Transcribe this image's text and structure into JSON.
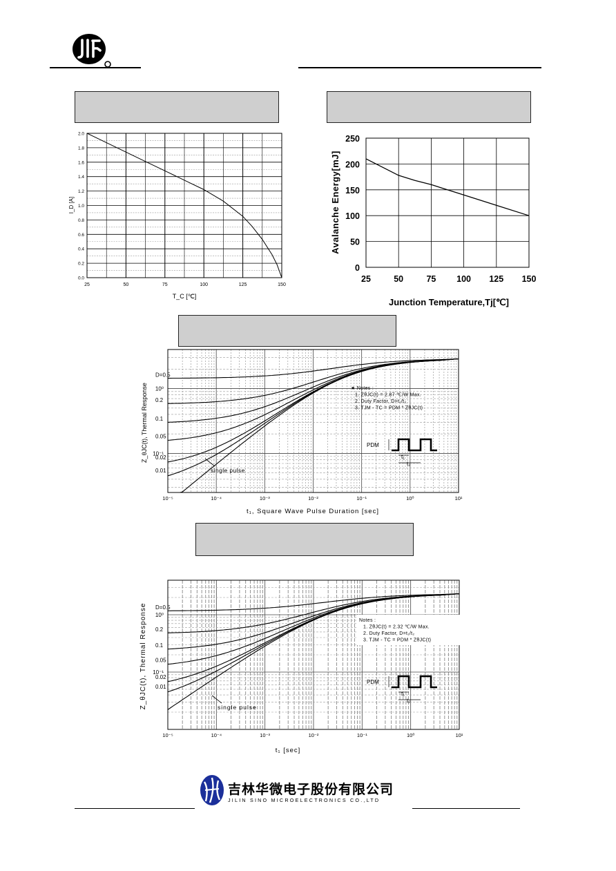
{
  "header": {
    "logo_name": "jilin-sino-logo"
  },
  "charts": [
    {
      "type": "line",
      "ylabel": "I_D [A]",
      "xlabel": "T_C [℃]",
      "x_ticks": [
        "25",
        "50",
        "75",
        "100",
        "125",
        "150"
      ],
      "y_ticks": [
        "0.0",
        "0.2",
        "0.4",
        "0.6",
        "0.8",
        "1.0",
        "1.2",
        "1.4",
        "1.6",
        "1.8",
        "2.0"
      ],
      "xlim": [
        25,
        150
      ],
      "ylim": [
        0,
        2.0
      ],
      "series": [
        {
          "x": [
            25,
            37.5,
            50,
            62.5,
            75,
            87.5,
            100,
            112.5,
            125,
            131,
            137.5,
            143.75,
            147,
            150
          ],
          "y": [
            2.0,
            1.87,
            1.74,
            1.61,
            1.48,
            1.35,
            1.22,
            1.06,
            0.85,
            0.71,
            0.53,
            0.32,
            0.18,
            0.0
          ]
        }
      ]
    },
    {
      "type": "line",
      "ylabel": "Avalanche Energy[mJ]",
      "xlabel": "Junction Temperature,Tj[℃]",
      "x_ticks": [
        "25",
        "50",
        "75",
        "100",
        "125",
        "150"
      ],
      "y_ticks": [
        "0",
        "50",
        "100",
        "150",
        "200",
        "250"
      ],
      "xlim": [
        25,
        150
      ],
      "ylim": [
        0,
        250
      ],
      "series": [
        {
          "x": [
            25,
            50,
            62.5,
            75,
            100,
            125,
            150
          ],
          "y": [
            210,
            178,
            168,
            160,
            140,
            120,
            100
          ]
        }
      ]
    },
    {
      "type": "line",
      "log_x": true,
      "log_y": true,
      "ylabel": "Z_θJC(t), Thermal Response",
      "xlabel": "t₁, Square Wave Pulse Duration [sec]",
      "x_ticks": [
        "10⁻⁵",
        "10⁻⁴",
        "10⁻³",
        "10⁻²",
        "10⁻¹",
        "10⁰",
        "10¹"
      ],
      "y_ticks": [
        "10⁰",
        "10⁻¹"
      ],
      "xlim": [
        1e-05,
        10
      ],
      "ylim": [
        0.025,
        4
      ],
      "curve_labels": [
        "D=0.5",
        "0.2",
        "0.1",
        "0.05",
        "0.02",
        "0.01",
        "single pulse"
      ],
      "notes": [
        "★ Notes :",
        "1. ZθJC(t) = 2.87 ℃/W Max.",
        "2. Duty Factor, D=t₁/t₂",
        "3. TJM - TC = PDM * ZθJC(t)"
      ],
      "pulse_labels": {
        "pdm": "PDM",
        "t1": "t₁",
        "t2": "t₂"
      },
      "steady_value": 2.87,
      "d_values": [
        0.5,
        0.2,
        0.1,
        0.05,
        0.02,
        0.01,
        0
      ]
    },
    {
      "type": "line",
      "log_x": true,
      "log_y": true,
      "ylabel": "Z_θJC(t), Thermal Response",
      "xlabel": "t₁ [sec]",
      "x_ticks": [
        "10⁻⁵",
        "10⁻⁴",
        "10⁻³",
        "10⁻²",
        "10⁻¹",
        "10⁰",
        "10¹"
      ],
      "y_ticks": [
        "10⁰",
        "10⁻¹"
      ],
      "xlim": [
        1e-05,
        10
      ],
      "ylim": [
        0.01,
        4
      ],
      "curve_labels": [
        "D=0.5",
        "0.2",
        "0.1",
        "0.05",
        "0.02",
        "0.01",
        "single pulse"
      ],
      "notes": [
        "Notes :",
        "1. ZθJC(t) = 2.32 ℃/W Max.",
        "2. Duty Factor, D=t₁/t₂",
        "3. TJM - TC = PDM * ZθJC(t)"
      ],
      "pulse_labels": {
        "pdm": "PDM",
        "t1": "t₁",
        "t2": "t₂"
      },
      "steady_value": 2.32,
      "d_values": [
        0.5,
        0.2,
        0.1,
        0.05,
        0.02,
        0.01,
        0
      ]
    }
  ],
  "footer": {
    "company_cn": "吉林华微电子股份有限公司",
    "company_en": "JILIN  SINO  MICROELECTRONICS  CO.,LTD"
  }
}
